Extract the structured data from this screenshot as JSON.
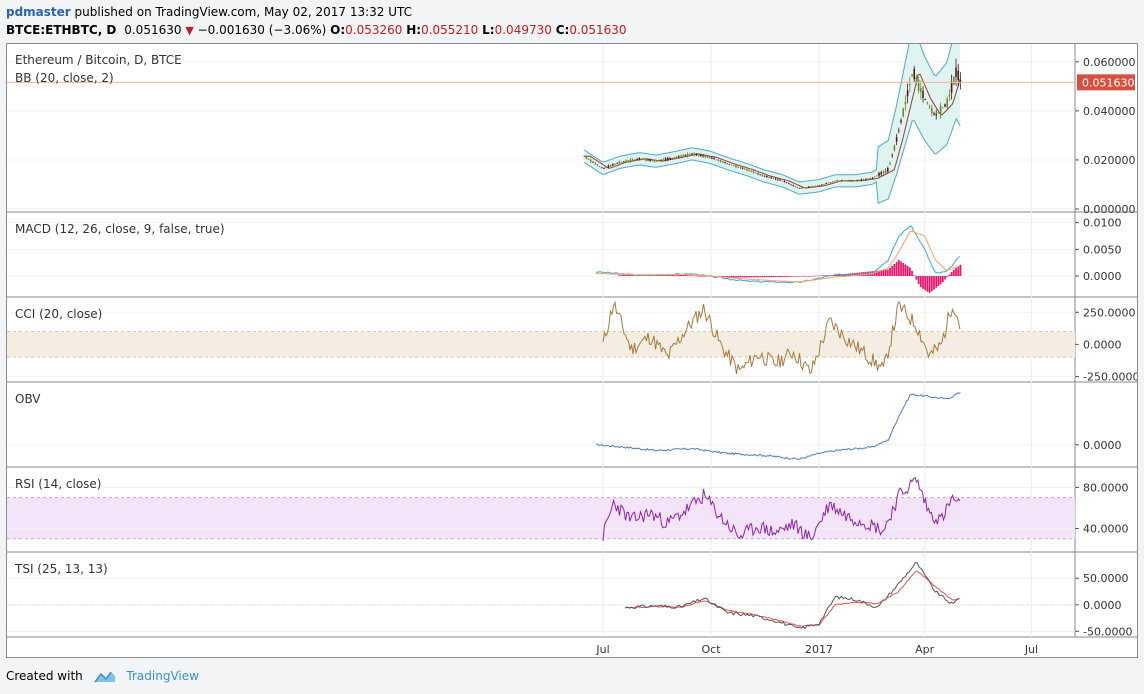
{
  "header": {
    "user": "pdmaster",
    "published_text": "published on TradingView.com, May 02, 2017 13:32 UTC",
    "symbol": "BTCE:ETHBTC, D",
    "last": "0.051630",
    "change": "−0.001630 (−3.06%)",
    "open_label": "O:",
    "open": "0.053260",
    "high_label": "H:",
    "high": "0.055210",
    "low_label": "L:",
    "low": "0.049730",
    "close_label": "C:",
    "close": "0.051630"
  },
  "footer": {
    "created_with": "Created with",
    "brand": "TradingView"
  },
  "colors": {
    "bb_band": "#4fa9c6",
    "bb_fill": "#dff3f1",
    "bb_basis": "#9b3b3b",
    "candle_up": "#6b8e23",
    "candle_down": "#4a1a1a",
    "macd_line": "#3aa7d8",
    "macd_signal": "#f4a460",
    "macd_hist": "#e8176e",
    "cci_line": "#a57b3c",
    "cci_band": "#f5ede2",
    "obv_line": "#4f7fb5",
    "rsi_line": "#8e24aa",
    "rsi_band": "#f3e4f9",
    "tsi_line": "#555555",
    "tsi_signal": "#e8534d",
    "last_price_tag": "#d6503f"
  },
  "chart_data": [
    {
      "type": "candlestick",
      "title": "Ethereum / Bitcoin, D, BTCE",
      "indicator_label": "BB (20, close, 2)",
      "x_ticks": [
        "Jul",
        "Oct",
        "2017",
        "Apr",
        "Jul"
      ],
      "y_ticks": [
        "0.060000",
        "0.040000",
        "0.020000",
        "0.000000"
      ],
      "ylim": [
        0.0,
        0.064
      ],
      "last_price": "0.051630",
      "close_series": {
        "dates": [
          "2016-06-15",
          "2016-07-01",
          "2016-07-15",
          "2016-08-01",
          "2016-08-15",
          "2016-09-01",
          "2016-09-15",
          "2016-10-01",
          "2016-10-15",
          "2016-11-01",
          "2016-11-15",
          "2016-12-01",
          "2016-12-15",
          "2017-01-01",
          "2017-01-15",
          "2017-02-01",
          "2017-02-15",
          "2017-03-01",
          "2017-03-08",
          "2017-03-15",
          "2017-03-22",
          "2017-04-01",
          "2017-04-10",
          "2017-04-20",
          "2017-04-28",
          "2017-05-02"
        ],
        "values": [
          0.0215,
          0.0165,
          0.019,
          0.0205,
          0.0195,
          0.021,
          0.0225,
          0.021,
          0.0185,
          0.016,
          0.0135,
          0.0115,
          0.0085,
          0.0095,
          0.0115,
          0.0115,
          0.0125,
          0.016,
          0.028,
          0.042,
          0.056,
          0.045,
          0.038,
          0.043,
          0.056,
          0.0516
        ]
      }
    },
    {
      "type": "line",
      "title": "MACD (12, 26, close, 9, false, true)",
      "y_ticks": [
        "0.0100",
        "0.0050",
        "0.0000"
      ],
      "series": [
        {
          "dates": [
            "2016-06-25",
            "2016-08-01",
            "2016-09-15",
            "2016-11-01",
            "2016-12-15",
            "2017-01-15",
            "2017-02-15",
            "2017-03-01",
            "2017-03-10",
            "2017-03-20",
            "2017-04-01",
            "2017-04-10",
            "2017-04-20",
            "2017-05-02"
          ],
          "values": [
            0.0008,
            0.0001,
            0.0004,
            -0.001,
            -0.0012,
            0.0002,
            0.0006,
            0.003,
            0.0075,
            0.0095,
            0.005,
            0.0005,
            0.0008,
            0.004
          ]
        },
        {
          "dates": [
            "2016-06-25",
            "2016-08-01",
            "2016-09-15",
            "2016-11-01",
            "2016-12-15",
            "2017-01-15",
            "2017-02-15",
            "2017-03-01",
            "2017-03-10",
            "2017-03-20",
            "2017-04-01",
            "2017-04-10",
            "2017-04-20",
            "2017-05-02"
          ],
          "values": [
            0.0005,
            0.0002,
            0.0003,
            -0.0006,
            -0.0011,
            -0.0002,
            0.0004,
            0.0015,
            0.0045,
            0.0085,
            0.0075,
            0.003,
            0.001,
            0.002
          ]
        }
      ],
      "histogram": {
        "dates": [
          "2016-07-15",
          "2016-09-01",
          "2016-10-15",
          "2016-12-01",
          "2017-01-15",
          "2017-03-01",
          "2017-03-10",
          "2017-03-20",
          "2017-03-28",
          "2017-04-05",
          "2017-04-15",
          "2017-04-25",
          "2017-05-02"
        ],
        "values": [
          0.0002,
          0.0003,
          -0.0003,
          -0.0002,
          0.0002,
          0.0012,
          0.003,
          0.0015,
          -0.002,
          -0.0032,
          -0.0015,
          0.001,
          0.0022
        ]
      }
    },
    {
      "type": "line",
      "title": "CCI (20, close)",
      "y_ticks": [
        "250.0000",
        "0.0000",
        "-250.0000"
      ],
      "band": [
        -100,
        100
      ],
      "series": [
        {
          "dates": [
            "2016-07-01",
            "2016-07-10",
            "2016-07-25",
            "2016-08-10",
            "2016-08-25",
            "2016-09-10",
            "2016-09-25",
            "2016-10-10",
            "2016-10-25",
            "2016-11-10",
            "2016-11-25",
            "2016-12-10",
            "2016-12-25",
            "2017-01-10",
            "2017-01-25",
            "2017-02-10",
            "2017-02-25",
            "2017-03-10",
            "2017-03-25",
            "2017-04-05",
            "2017-04-15",
            "2017-04-25",
            "2017-05-02"
          ],
          "values": [
            0,
            320,
            -40,
            60,
            -100,
            120,
            280,
            -20,
            -210,
            -80,
            -150,
            -60,
            -220,
            180,
            40,
            -80,
            -200,
            300,
            150,
            -90,
            -10,
            330,
            120
          ]
        }
      ]
    },
    {
      "type": "line",
      "title": "OBV",
      "y_ticks": [
        "0.0000"
      ],
      "series": [
        {
          "dates": [
            "2016-06-25",
            "2016-07-20",
            "2016-08-15",
            "2016-09-15",
            "2016-10-15",
            "2016-11-15",
            "2016-12-15",
            "2017-01-01",
            "2017-01-15",
            "2017-02-15",
            "2017-03-01",
            "2017-03-10",
            "2017-03-20",
            "2017-04-05",
            "2017-04-20",
            "2017-05-02"
          ],
          "values": [
            0,
            -5,
            -12,
            -8,
            -18,
            -22,
            -30,
            -18,
            -12,
            -5,
            10,
            60,
            105,
            100,
            95,
            110
          ]
        }
      ]
    },
    {
      "type": "line",
      "title": "RSI (14, close)",
      "y_ticks": [
        "80.0000",
        "40.0000"
      ],
      "band": [
        30,
        70
      ],
      "series": [
        {
          "dates": [
            "2016-07-01",
            "2016-07-10",
            "2016-07-25",
            "2016-08-10",
            "2016-08-25",
            "2016-09-10",
            "2016-09-25",
            "2016-10-10",
            "2016-10-25",
            "2016-11-10",
            "2016-11-25",
            "2016-12-10",
            "2016-12-25",
            "2017-01-10",
            "2017-01-25",
            "2017-02-10",
            "2017-02-25",
            "2017-03-10",
            "2017-03-25",
            "2017-04-05",
            "2017-04-15",
            "2017-04-25",
            "2017-05-02"
          ],
          "values": [
            33,
            65,
            48,
            55,
            45,
            58,
            72,
            50,
            32,
            42,
            36,
            44,
            30,
            64,
            52,
            46,
            38,
            72,
            88,
            55,
            48,
            70,
            60
          ]
        }
      ]
    },
    {
      "type": "line",
      "title": "TSI (25, 13, 13)",
      "y_ticks": [
        "50.0000",
        "0.0000",
        "-50.0000"
      ],
      "series": [
        {
          "dates": [
            "2016-07-20",
            "2016-08-15",
            "2016-09-05",
            "2016-09-25",
            "2016-10-15",
            "2016-11-05",
            "2016-11-25",
            "2016-12-15",
            "2017-01-01",
            "2017-01-15",
            "2017-02-01",
            "2017-02-20",
            "2017-03-10",
            "2017-03-25",
            "2017-04-10",
            "2017-04-25",
            "2017-05-02"
          ],
          "values": [
            -5,
            -2,
            -4,
            12,
            -15,
            -20,
            -30,
            -45,
            -35,
            15,
            10,
            -5,
            40,
            80,
            25,
            0,
            18
          ]
        },
        {
          "dates": [
            "2016-07-20",
            "2016-08-15",
            "2016-09-05",
            "2016-09-25",
            "2016-10-15",
            "2016-11-05",
            "2016-11-25",
            "2016-12-15",
            "2017-01-01",
            "2017-01-15",
            "2017-02-01",
            "2017-02-20",
            "2017-03-10",
            "2017-03-25",
            "2017-04-10",
            "2017-04-25",
            "2017-05-02"
          ],
          "values": [
            -6,
            -3,
            -5,
            8,
            -10,
            -18,
            -28,
            -40,
            -38,
            0,
            5,
            2,
            25,
            65,
            35,
            8,
            12
          ]
        }
      ]
    }
  ]
}
